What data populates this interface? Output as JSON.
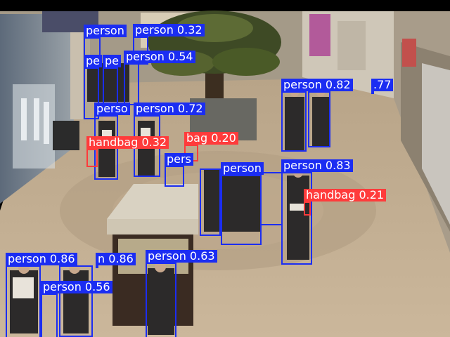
{
  "colors": {
    "person": "#1b2df2",
    "handbag": "#ff3b3b",
    "label_text": "#ffffff"
  },
  "detections": [
    {
      "cls": "person",
      "label": "person"
    },
    {
      "cls": "person",
      "label": "person 0.32"
    },
    {
      "cls": "person",
      "label": "pe"
    },
    {
      "cls": "person",
      "label": "pe"
    },
    {
      "cls": "person",
      "label": "person 0.54"
    },
    {
      "cls": "person",
      "label": "perso"
    },
    {
      "cls": "person",
      "label": "person 0.72"
    },
    {
      "cls": "handbag",
      "label": "handbag 0.32"
    },
    {
      "cls": "handbag",
      "label": "bag 0.20"
    },
    {
      "cls": "person",
      "label": "pers"
    },
    {
      "cls": "person",
      "label": "person 0.82"
    },
    {
      "cls": "person",
      "label": ".77"
    },
    {
      "cls": "person",
      "label": "person"
    },
    {
      "cls": "person",
      "label": "person 0.83"
    },
    {
      "cls": "handbag",
      "label": "handbag 0.21"
    },
    {
      "cls": "person",
      "label": "person 0.86"
    },
    {
      "cls": "person",
      "label": "n 0.86"
    },
    {
      "cls": "person",
      "label": "person 0.56"
    },
    {
      "cls": "person",
      "label": "person 0.63"
    }
  ]
}
